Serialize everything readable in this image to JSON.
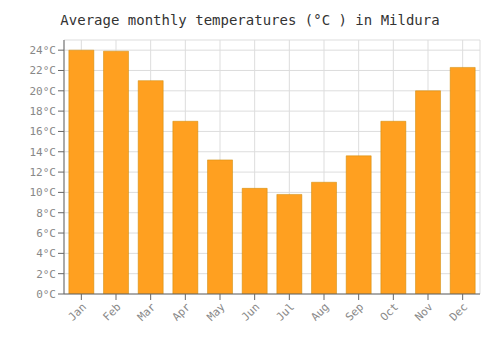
{
  "chart_data": {
    "type": "bar",
    "title": "Average monthly temperatures (°C ) in Mildura",
    "categories": [
      "Jan",
      "Feb",
      "Mar",
      "Apr",
      "May",
      "Jun",
      "Jul",
      "Aug",
      "Sep",
      "Oct",
      "Nov",
      "Dec"
    ],
    "values": [
      24.0,
      23.9,
      21.0,
      17.0,
      13.2,
      10.4,
      9.8,
      11.0,
      13.6,
      17.0,
      20.0,
      22.3
    ],
    "color": "#FFA020",
    "ylim": [
      0,
      25
    ],
    "yticks": [
      {
        "value": 0,
        "label": "0°C"
      },
      {
        "value": 2,
        "label": "2°C"
      },
      {
        "value": 4,
        "label": "4°C"
      },
      {
        "value": 6,
        "label": "6°C"
      },
      {
        "value": 8,
        "label": "8°C"
      },
      {
        "value": 10,
        "label": "10°C"
      },
      {
        "value": 12,
        "label": "12°C"
      },
      {
        "value": 14,
        "label": "14°C"
      },
      {
        "value": 16,
        "label": "16°C"
      },
      {
        "value": 18,
        "label": "18°C"
      },
      {
        "value": 20,
        "label": "20°C"
      },
      {
        "value": 22,
        "label": "22°C"
      },
      {
        "value": 24,
        "label": "24°C"
      }
    ],
    "grid": true
  }
}
